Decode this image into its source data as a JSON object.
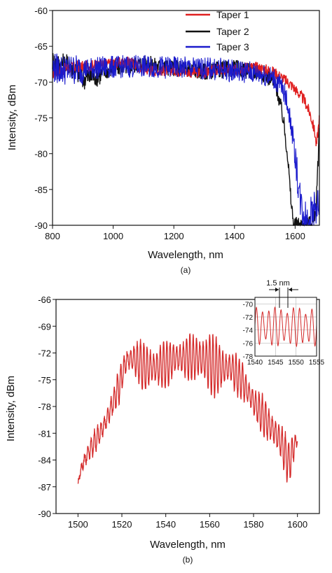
{
  "chart_data": [
    {
      "type": "line",
      "panel_label": "(a)",
      "xlabel": "Wavelength, nm",
      "ylabel": "Intensity, dBm",
      "xlim": [
        800,
        1680
      ],
      "ylim": [
        -90,
        -60
      ],
      "xticks": [
        800,
        1000,
        1200,
        1400,
        1600
      ],
      "yticks": [
        -60,
        -65,
        -70,
        -75,
        -80,
        -85,
        -90
      ],
      "legend_position": "top-right",
      "colors": {
        "Taper 1": "#e02020",
        "Taper 2": "#111111",
        "Taper 3": "#1a1acc"
      },
      "series": [
        {
          "name": "Taper 1",
          "x": [
            800,
            850,
            900,
            950,
            1000,
            1050,
            1100,
            1150,
            1200,
            1250,
            1300,
            1350,
            1400,
            1450,
            1500,
            1530,
            1560,
            1590,
            1610,
            1630,
            1650,
            1665,
            1670,
            1680
          ],
          "y": [
            -68.8,
            -68.0,
            -67.8,
            -67.6,
            -67.4,
            -67.2,
            -68.2,
            -68.4,
            -68.3,
            -68.6,
            -68.7,
            -68.2,
            -68.4,
            -67.8,
            -68.2,
            -68.6,
            -69.5,
            -70.5,
            -71.5,
            -72.5,
            -74.5,
            -77.0,
            -79.0,
            -75.0
          ],
          "noise": 0.8
        },
        {
          "name": "Taper 2",
          "x": [
            800,
            820,
            850,
            880,
            900,
            950,
            1000,
            1050,
            1100,
            1150,
            1200,
            1250,
            1300,
            1350,
            1400,
            1450,
            1500,
            1520,
            1540,
            1560,
            1575,
            1585,
            1595,
            1605,
            1620,
            1640,
            1660,
            1670,
            1675,
            1680
          ],
          "y": [
            -67.0,
            -67.5,
            -67.5,
            -68.5,
            -69.5,
            -69.0,
            -68.0,
            -67.8,
            -67.3,
            -67.8,
            -68.0,
            -68.2,
            -68.5,
            -68.3,
            -68.0,
            -68.5,
            -68.8,
            -69.5,
            -71.0,
            -75.0,
            -80.0,
            -86.0,
            -90.0,
            -90.0,
            -90.0,
            -90.0,
            -89.5,
            -87.0,
            -82.0,
            -75.0
          ],
          "noise": 1.2
        },
        {
          "name": "Taper 3",
          "x": [
            800,
            830,
            860,
            900,
            950,
            1000,
            1050,
            1100,
            1150,
            1200,
            1250,
            1300,
            1350,
            1400,
            1450,
            1500,
            1530,
            1560,
            1575,
            1590,
            1605,
            1615,
            1625,
            1640,
            1650,
            1660,
            1670,
            1680
          ],
          "y": [
            -68.0,
            -68.2,
            -68.3,
            -68.2,
            -68.0,
            -67.9,
            -67.8,
            -67.8,
            -67.9,
            -68.0,
            -68.0,
            -68.1,
            -68.2,
            -68.4,
            -68.6,
            -69.0,
            -69.5,
            -71.0,
            -73.0,
            -77.0,
            -82.0,
            -86.0,
            -88.0,
            -89.0,
            -88.5,
            -88.0,
            -87.5,
            -87.0
          ],
          "noise": 1.6
        }
      ]
    },
    {
      "type": "line",
      "panel_label": "(b)",
      "xlabel": "Wavelength, nm",
      "ylabel": "Intensity, dBm",
      "xlim": [
        1490,
        1610
      ],
      "ylim": [
        -90,
        -66
      ],
      "xticks": [
        1500,
        1520,
        1540,
        1560,
        1580,
        1600
      ],
      "yticks": [
        -66,
        -69,
        -72,
        -75,
        -78,
        -81,
        -84,
        -87,
        -90
      ],
      "colors": {
        "trace": "#d42a2a"
      },
      "series": [
        {
          "x": [
            1500,
            1502,
            1505,
            1510,
            1513,
            1516,
            1519,
            1522,
            1526,
            1530,
            1535,
            1540,
            1545,
            1550,
            1555,
            1558,
            1562,
            1566,
            1570,
            1575,
            1580,
            1585,
            1590,
            1593,
            1596,
            1598,
            1600
          ],
          "upper": [
            -86.5,
            -83.5,
            -82.0,
            -79.5,
            -78.0,
            -76.0,
            -73.5,
            -71.0,
            -70.5,
            -70.5,
            -70.8,
            -70.5,
            -70.2,
            -70.0,
            -69.5,
            -69.0,
            -70.0,
            -70.8,
            -71.5,
            -73.0,
            -75.5,
            -77.0,
            -78.5,
            -80.0,
            -82.0,
            -80.5,
            -81.0
          ],
          "lower": [
            -86.5,
            -85.5,
            -84.0,
            -82.5,
            -81.0,
            -79.0,
            -77.5,
            -74.5,
            -75.0,
            -76.5,
            -76.5,
            -76.0,
            -75.0,
            -75.0,
            -75.5,
            -76.5,
            -77.0,
            -76.5,
            -76.0,
            -77.5,
            -79.5,
            -81.5,
            -83.5,
            -84.5,
            -87.0,
            -85.0,
            -82.5
          ],
          "period_nm": 1.5
        }
      ],
      "inset": {
        "xlim": [
          1540,
          1555
        ],
        "ylim": [
          -78,
          -69
        ],
        "xticks": [
          1540,
          1545,
          1550,
          1555
        ],
        "yticks": [
          -70,
          -72,
          -74,
          -76,
          -78
        ],
        "annotation": "1.5 nm",
        "center": -73.5,
        "amplitude": 3.0,
        "period_nm": 1.5
      }
    }
  ]
}
